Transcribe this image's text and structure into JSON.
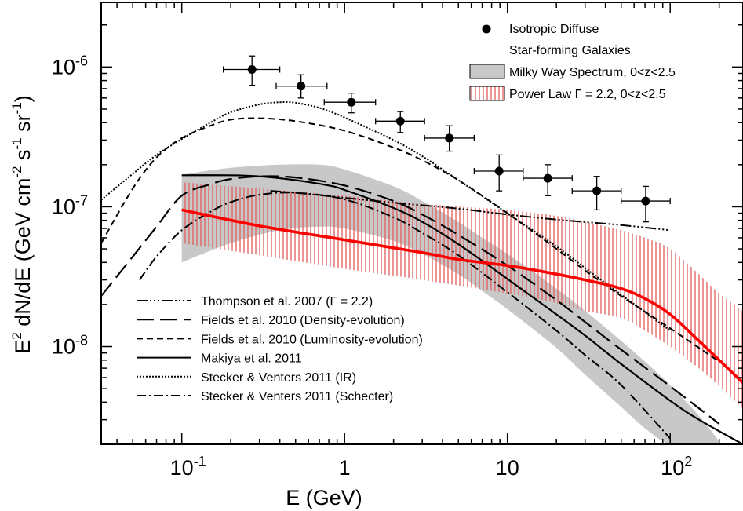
{
  "chart_data": {
    "type": "line",
    "title": "",
    "xlabel": "E (GeV)",
    "ylabel_parts": [
      "E",
      "2",
      " dN/dE (GeV cm",
      "-2",
      " s",
      "-1",
      " sr",
      "-1",
      ")"
    ],
    "x_scale": "log",
    "y_scale": "log",
    "xlim": [
      0.032,
      280
    ],
    "ylim": [
      2e-09,
      2.9e-06
    ],
    "x_ticks": [
      {
        "value": 0.1,
        "base": "10",
        "exp": "-1"
      },
      {
        "value": 1,
        "base": "1",
        "exp": ""
      },
      {
        "value": 10,
        "base": "10",
        "exp": ""
      },
      {
        "value": 100,
        "base": "10",
        "exp": "2"
      }
    ],
    "y_ticks": [
      {
        "value": 1e-08,
        "base": "10",
        "exp": "-8"
      },
      {
        "value": 1e-07,
        "base": "10",
        "exp": "-7"
      },
      {
        "value": 1e-06,
        "base": "10",
        "exp": "-6"
      }
    ],
    "grid": false,
    "legend_placement": "top-right and bottom-left",
    "legend_top": [
      {
        "label": "Isotropic Diffuse",
        "symbol": "dot"
      },
      {
        "label": "Star-forming Galaxies",
        "symbol": "none"
      },
      {
        "label": "Milky Way Spectrum, 0<z<2.5",
        "symbol": "grey-band"
      },
      {
        "label": "Power Law Γ = 2.2, 0<z<2.5",
        "symbol": "red-hatch"
      }
    ],
    "legend_bottom": [
      {
        "label": "Thompson et al. 2007 (Γ = 2.2)",
        "dash": "14,3,2,3,2,3,2,3"
      },
      {
        "label": "Fields et al. 2010 (Density-evolution)",
        "dash": "22,8"
      },
      {
        "label": "Fields et al. 2010 (Luminosity-evolution)",
        "dash": "8,5"
      },
      {
        "label": "Makiya et al. 2011",
        "dash": ""
      },
      {
        "label": "Stecker & Venters 2011 (IR)",
        "dash": "2,2"
      },
      {
        "label": "Stecker & Venters 2011 (Schecter)",
        "dash": "12,4,2,4"
      }
    ],
    "isotropic_points": [
      {
        "x": 0.27,
        "y": 9.6e-07,
        "xerr": [
          0.18,
          0.4
        ],
        "yerr": [
          7.4e-07,
          1.2e-06
        ]
      },
      {
        "x": 0.54,
        "y": 7.3e-07,
        "xerr": [
          0.38,
          0.78
        ],
        "yerr": [
          6e-07,
          8.8e-07
        ]
      },
      {
        "x": 1.1,
        "y": 5.6e-07,
        "xerr": [
          0.75,
          1.55
        ],
        "yerr": [
          4.7e-07,
          6.5e-07
        ]
      },
      {
        "x": 2.2,
        "y": 4.1e-07,
        "xerr": [
          1.55,
          3.1
        ],
        "yerr": [
          3.4e-07,
          4.8e-07
        ]
      },
      {
        "x": 4.4,
        "y": 3.1e-07,
        "xerr": [
          3.1,
          6.25
        ],
        "yerr": [
          2.5e-07,
          3.8e-07
        ]
      },
      {
        "x": 8.9,
        "y": 1.8e-07,
        "xerr": [
          6.25,
          12.5
        ],
        "yerr": [
          1.3e-07,
          2.35e-07
        ]
      },
      {
        "x": 17.7,
        "y": 1.6e-07,
        "xerr": [
          12.5,
          25.0
        ],
        "yerr": [
          1.2e-07,
          2e-07
        ]
      },
      {
        "x": 35.4,
        "y": 1.3e-07,
        "xerr": [
          25.0,
          50.0
        ],
        "yerr": [
          9.5e-08,
          1.65e-07
        ]
      },
      {
        "x": 70.7,
        "y": 1.1e-07,
        "xerr": [
          50.0,
          100.0
        ],
        "yerr": [
          7.8e-08,
          1.4e-07
        ]
      }
    ],
    "milky_way_band": {
      "x": [
        0.1,
        0.2,
        0.4,
        0.7,
        1.0,
        2.0,
        3.0,
        5.0,
        7.0,
        10.0,
        20.0,
        30.0,
        50.0,
        70.0,
        100.0,
        150.0,
        200.0
      ],
      "upper": [
        1.7e-07,
        1.9e-07,
        2e-07,
        2e-07,
        1.85e-07,
        1.4e-07,
        1.1e-07,
        7.8e-08,
        6e-08,
        4.6e-08,
        2.6e-08,
        1.8e-08,
        1.1e-08,
        7.8e-09,
        5.3e-09,
        3.2e-09,
        2.1e-09
      ],
      "lower": [
        4e-08,
        5.5e-08,
        6.8e-08,
        7.2e-08,
        7e-08,
        5.7e-08,
        4.6e-08,
        3.3e-08,
        2.5e-08,
        1.85e-08,
        9.8e-09,
        6.3e-09,
        3.7e-09,
        2.6e-09,
        2e-09,
        2e-09,
        2e-09
      ]
    },
    "power_law_band": {
      "x": [
        0.1,
        0.3,
        1.0,
        3.0,
        10.0,
        20.0,
        30.0,
        50.0,
        70.0,
        100.0,
        150.0,
        200.0,
        280.0
      ],
      "upper": [
        1.5e-07,
        1.35e-07,
        1.2e-07,
        1.05e-07,
        9.5e-08,
        8.6e-08,
        7.8e-08,
        6.8e-08,
        6e-08,
        5e-08,
        3.3e-08,
        2.4e-08,
        1.8e-08
      ],
      "lower": [
        5.5e-08,
        4.5e-08,
        3.6e-08,
        3e-08,
        2.4e-08,
        2.05e-08,
        1.8e-08,
        1.6e-08,
        1.3e-08,
        1e-08,
        7e-09,
        5.2e-09,
        3.6e-09
      ]
    },
    "series": [
      {
        "name": "Power Law Γ = 2.2, 0<z<2.5",
        "style": "red",
        "color": "#ff0000",
        "x": [
          0.1,
          0.3,
          1.0,
          3.0,
          5.0,
          10.0,
          20.0,
          30.0,
          50.0,
          70.0,
          100.0,
          150.0,
          280.0
        ],
        "y": [
          9.5e-08,
          7.3e-08,
          5.8e-08,
          4.7e-08,
          4.2e-08,
          3.8e-08,
          3.3e-08,
          3e-08,
          2.6e-08,
          2.2e-08,
          1.7e-08,
          1.1e-08,
          5.5e-09
        ]
      },
      {
        "name": "Thompson et al. 2007 (Γ = 2.2)",
        "style": "thompson",
        "color": "#000000",
        "x": [
          0.35,
          0.5,
          1.0,
          2.0,
          5.0,
          10.0,
          20.0,
          50.0,
          100.0
        ],
        "y": [
          1.3e-07,
          1.26e-07,
          1.16e-07,
          1.07e-07,
          9.7e-08,
          8.8e-08,
          8.1e-08,
          7.4e-08,
          6.8e-08
        ]
      },
      {
        "name": "Fields et al. 2010 (Density-evolution)",
        "style": "fields-density",
        "color": "#000000",
        "x": [
          0.032,
          0.05,
          0.07,
          0.1,
          0.15,
          0.2,
          0.3,
          0.5,
          1.0,
          2.0,
          3.0,
          5.0,
          10.0,
          20.0,
          30.0,
          50.0,
          100.0,
          200.0
        ],
        "y": [
          2.3e-08,
          4.4e-08,
          7.2e-08,
          1.2e-07,
          1.45e-07,
          1.58e-07,
          1.65e-07,
          1.62e-07,
          1.42e-07,
          1.1e-07,
          8.8e-08,
          6.3e-08,
          3.8e-08,
          2.15e-08,
          1.5e-08,
          9.5e-09,
          5.2e-09,
          2.8e-09
        ]
      },
      {
        "name": "Fields et al. 2010 (Luminosity-evolution)",
        "style": "fields-lum",
        "color": "#000000",
        "x": [
          0.032,
          0.05,
          0.07,
          0.1,
          0.15,
          0.2,
          0.3,
          0.5,
          1.0,
          2.0,
          3.0,
          5.0,
          10.0,
          20.0,
          30.0,
          50.0,
          100.0,
          200.0
        ],
        "y": [
          5.5e-08,
          1.35e-07,
          2.25e-07,
          3.1e-07,
          3.8e-07,
          4.2e-07,
          4.3e-07,
          4.1e-07,
          3.5e-07,
          2.65e-07,
          2.15e-07,
          1.55e-07,
          9e-08,
          5e-08,
          3.5e-08,
          2.3e-08,
          1.35e-08,
          7.8e-09
        ]
      },
      {
        "name": "Makiya et al. 2011",
        "style": "makiya",
        "color": "#000000",
        "x": [
          0.1,
          0.2,
          0.3,
          0.5,
          0.8,
          1.0,
          2.0,
          3.0,
          5.0,
          10.0,
          20.0,
          30.0,
          50.0,
          100.0,
          150.0,
          280.0
        ],
        "y": [
          1.68e-07,
          1.68e-07,
          1.65e-07,
          1.55e-07,
          1.42e-07,
          1.32e-07,
          9.8e-08,
          7.8e-08,
          5.4e-08,
          3.05e-08,
          1.7e-08,
          1.2e-08,
          7.5e-09,
          4.1e-09,
          3e-09,
          2e-09
        ]
      },
      {
        "name": "Stecker & Venters 2011 (IR)",
        "style": "stecker-ir",
        "color": "#000000",
        "x": [
          0.032,
          0.05,
          0.07,
          0.1,
          0.15,
          0.2,
          0.3,
          0.4,
          0.5,
          0.7,
          1.0,
          2.0,
          3.0,
          5.0,
          10.0,
          20.0,
          30.0,
          50.0,
          100.0
        ],
        "y": [
          1.12e-07,
          1.72e-07,
          2.35e-07,
          3.05e-07,
          4e-07,
          4.75e-07,
          5.4e-07,
          5.6e-07,
          5.55e-07,
          5.1e-07,
          4.35e-07,
          3e-07,
          2.3e-07,
          1.55e-07,
          9e-08,
          5.2e-08,
          3.65e-08,
          2.35e-08,
          1.3e-08
        ]
      },
      {
        "name": "Stecker & Venters 2011 (Schecter)",
        "style": "stecker-sch",
        "color": "#000000",
        "x": [
          0.055,
          0.07,
          0.1,
          0.15,
          0.2,
          0.3,
          0.5,
          1.0,
          2.0,
          3.0,
          5.0,
          10.0,
          20.0,
          30.0,
          50.0,
          100.0
        ],
        "y": [
          3e-08,
          4.4e-08,
          6.8e-08,
          9.2e-08,
          1.08e-07,
          1.22e-07,
          1.26e-07,
          1.13e-07,
          8.4e-08,
          6.5e-08,
          4.5e-08,
          2.45e-08,
          1.3e-08,
          8.7e-09,
          5.3e-09,
          2.2e-09
        ]
      }
    ]
  }
}
